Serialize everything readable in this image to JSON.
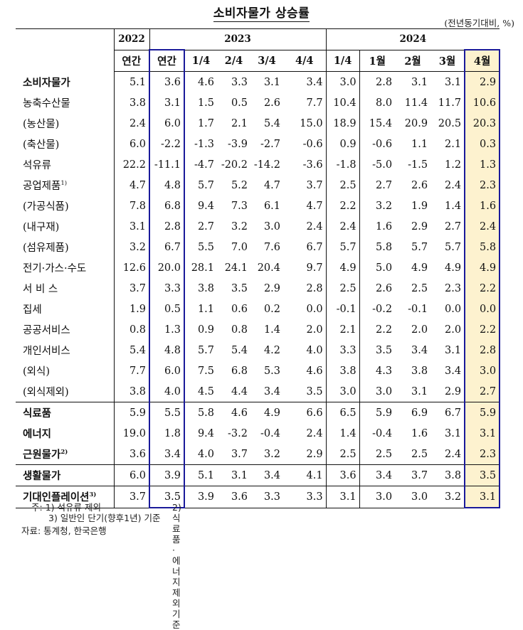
{
  "title": "소비자물가 상승률",
  "unit": "(전년동기대비, %)",
  "header": {
    "years": [
      {
        "label": "2022",
        "span": 1
      },
      {
        "label": "2023",
        "span": 5
      },
      {
        "label": "2024",
        "span": 5
      }
    ],
    "periods": [
      "연간",
      "연간",
      "1/4",
      "2/4",
      "3/4",
      "4/4",
      "1/4",
      "1월",
      "2월",
      "3월",
      "4월"
    ]
  },
  "rows": [
    {
      "label": "소비자물가",
      "sup": "",
      "bold_label": true,
      "indent": 0,
      "values": [
        "5.1",
        "3.6",
        "4.6",
        "3.3",
        "3.1",
        "3.4",
        "3.0",
        "2.8",
        "3.1",
        "3.1",
        "2.9"
      ],
      "bold_last": true
    },
    {
      "label": "농축수산물",
      "sup": "",
      "bold_label": false,
      "indent": 1,
      "values": [
        "3.8",
        "3.1",
        "1.5",
        "0.5",
        "2.6",
        "7.7",
        "10.4",
        "8.0",
        "11.4",
        "11.7",
        "10.6"
      ],
      "bold_last": false
    },
    {
      "label": "(농산물)",
      "sup": "",
      "bold_label": false,
      "indent": 2,
      "values": [
        "2.4",
        "6.0",
        "1.7",
        "2.1",
        "5.4",
        "15.0",
        "18.9",
        "15.4",
        "20.9",
        "20.5",
        "20.3"
      ],
      "bold_last": true
    },
    {
      "label": "(축산물)",
      "sup": "",
      "bold_label": false,
      "indent": 2,
      "values": [
        "6.0",
        "-2.2",
        "-1.3",
        "-3.9",
        "-2.7",
        "-0.6",
        "0.9",
        "-0.6",
        "1.1",
        "2.1",
        "0.3"
      ],
      "bold_last": false
    },
    {
      "label": "석유류",
      "sup": "",
      "bold_label": false,
      "indent": 1,
      "values": [
        "22.2",
        "-11.1",
        "-4.7",
        "-20.2",
        "-14.2",
        "-3.6",
        "-1.8",
        "-5.0",
        "-1.5",
        "1.2",
        "1.3"
      ],
      "bold_last": true
    },
    {
      "label": "공업제품",
      "sup": "1)",
      "bold_label": false,
      "indent": 1,
      "values": [
        "4.7",
        "4.8",
        "5.7",
        "5.2",
        "4.7",
        "3.7",
        "2.5",
        "2.7",
        "2.6",
        "2.4",
        "2.3"
      ],
      "bold_last": false
    },
    {
      "label": "(가공식품)",
      "sup": "",
      "bold_label": false,
      "indent": 2,
      "values": [
        "7.8",
        "6.8",
        "9.4",
        "7.3",
        "6.1",
        "4.7",
        "2.2",
        "3.2",
        "1.9",
        "1.4",
        "1.6"
      ],
      "bold_last": false
    },
    {
      "label": "(내구재)",
      "sup": "",
      "bold_label": false,
      "indent": 2,
      "values": [
        "3.1",
        "2.8",
        "2.7",
        "3.2",
        "3.0",
        "2.4",
        "2.4",
        "1.6",
        "2.9",
        "2.7",
        "2.4"
      ],
      "bold_last": true
    },
    {
      "label": "(섬유제품)",
      "sup": "",
      "bold_label": false,
      "indent": 2,
      "values": [
        "3.2",
        "6.7",
        "5.5",
        "7.0",
        "7.6",
        "6.7",
        "5.7",
        "5.8",
        "5.7",
        "5.7",
        "5.8"
      ],
      "bold_last": false
    },
    {
      "label": "전기·가스·수도",
      "sup": "",
      "bold_label": false,
      "indent": 1,
      "values": [
        "12.6",
        "20.0",
        "28.1",
        "24.1",
        "20.4",
        "9.7",
        "4.9",
        "5.0",
        "4.9",
        "4.9",
        "4.9"
      ],
      "bold_last": false
    },
    {
      "label": "서 비 스",
      "sup": "",
      "bold_label": false,
      "indent": 1,
      "values": [
        "3.7",
        "3.3",
        "3.8",
        "3.5",
        "2.9",
        "2.8",
        "2.5",
        "2.6",
        "2.5",
        "2.3",
        "2.2"
      ],
      "bold_last": false
    },
    {
      "label": "집세",
      "sup": "",
      "bold_label": false,
      "indent": 3,
      "values": [
        "1.9",
        "0.5",
        "1.1",
        "0.6",
        "0.2",
        "0.0",
        "-0.1",
        "-0.2",
        "-0.1",
        "0.0",
        "0.0"
      ],
      "bold_last": false
    },
    {
      "label": "공공서비스",
      "sup": "",
      "bold_label": false,
      "indent": 3,
      "values": [
        "0.8",
        "1.3",
        "0.9",
        "0.8",
        "1.4",
        "2.0",
        "2.1",
        "2.2",
        "2.0",
        "2.0",
        "2.2"
      ],
      "bold_last": false
    },
    {
      "label": "개인서비스",
      "sup": "",
      "bold_label": false,
      "indent": 3,
      "values": [
        "5.4",
        "4.8",
        "5.7",
        "5.4",
        "4.2",
        "4.0",
        "3.3",
        "3.5",
        "3.4",
        "3.1",
        "2.8"
      ],
      "bold_last": true
    },
    {
      "label": "(외식)",
      "sup": "",
      "bold_label": false,
      "indent": 4,
      "values": [
        "7.7",
        "6.0",
        "7.5",
        "6.8",
        "5.3",
        "4.6",
        "3.8",
        "4.3",
        "3.8",
        "3.4",
        "3.0"
      ],
      "bold_last": false
    },
    {
      "label": "(외식제외)",
      "sup": "",
      "bold_label": false,
      "indent": 4,
      "values": [
        "3.8",
        "4.0",
        "4.5",
        "4.4",
        "3.4",
        "3.5",
        "3.0",
        "3.0",
        "3.1",
        "2.9",
        "2.7"
      ],
      "bold_last": false
    },
    {
      "label": "식료품",
      "sup": "",
      "bold_label": true,
      "indent": 0,
      "values": [
        "5.9",
        "5.5",
        "5.8",
        "4.6",
        "4.9",
        "6.6",
        "6.5",
        "5.9",
        "6.9",
        "6.7",
        "5.9"
      ],
      "bold_last": false
    },
    {
      "label": "에너지",
      "sup": "",
      "bold_label": true,
      "indent": 0,
      "values": [
        "19.0",
        "1.8",
        "9.4",
        "-3.2",
        "-0.4",
        "2.4",
        "1.4",
        "-0.4",
        "1.6",
        "3.1",
        "3.1"
      ],
      "bold_last": false
    },
    {
      "label": "근원물가",
      "sup": "2)",
      "bold_label": true,
      "indent": 0,
      "values": [
        "3.6",
        "3.4",
        "4.0",
        "3.7",
        "3.2",
        "2.9",
        "2.5",
        "2.5",
        "2.5",
        "2.4",
        "2.3"
      ],
      "bold_last": true
    },
    {
      "label": "생활물가",
      "sup": "",
      "bold_label": true,
      "indent": 0,
      "values": [
        "6.0",
        "3.9",
        "5.1",
        "3.1",
        "3.4",
        "4.1",
        "3.6",
        "3.4",
        "3.7",
        "3.8",
        "3.5"
      ],
      "bold_last": true
    },
    {
      "label": "기대인플레이션",
      "sup": "3)",
      "bold_label": true,
      "indent": 0,
      "values": [
        "3.7",
        "3.5",
        "3.9",
        "3.6",
        "3.3",
        "3.3",
        "3.1",
        "3.0",
        "3.0",
        "3.2",
        "3.1"
      ],
      "bold_last": true
    }
  ],
  "section_breaks_before": [
    16,
    19,
    20
  ],
  "notes": {
    "prefix": "주:",
    "note1": "1) 석유류 제외",
    "note2": "2) 식료품·에너지 제외 기준",
    "note3": "3) 일반인 단기(향후1년) 기준"
  },
  "source": "자료: 통계청, 한국은행",
  "colors": {
    "highlight_border": "#1a1a9a",
    "highlight_fill": "#fdf2cf"
  }
}
